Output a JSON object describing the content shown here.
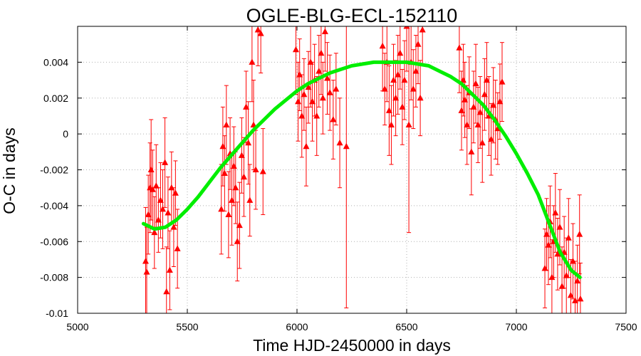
{
  "chart_data": {
    "type": "scatter",
    "title": "OGLE-BLG-ECL-152110",
    "xlabel": "Time HJD-2450000 in days",
    "ylabel": "O-C in days",
    "xlim": [
      5000,
      7500
    ],
    "ylim": [
      -0.01,
      0.006
    ],
    "xticks": [
      5000,
      5500,
      6000,
      6500,
      7000,
      7500
    ],
    "xtick_labels": [
      "5000",
      "5500",
      "6000",
      "6500",
      "7000",
      "7500"
    ],
    "yticks": [
      -0.01,
      -0.008,
      -0.006,
      -0.004,
      -0.002,
      0,
      0.002,
      0.004
    ],
    "ytick_labels": [
      "-0.01",
      "-0.008",
      "-0.006",
      "-0.004",
      "-0.002",
      "0",
      "0.002",
      "0.004"
    ],
    "grid": true,
    "series": [
      {
        "kind": "errorbar-points",
        "marker": "triangle",
        "color": "#ff0000",
        "points": [
          {
            "x": 5310,
            "y": -0.0071,
            "err": 0.003
          },
          {
            "x": 5315,
            "y": -0.0077,
            "err": 0.0025
          },
          {
            "x": 5322,
            "y": -0.0045,
            "err": 0.0022
          },
          {
            "x": 5330,
            "y": -0.003,
            "err": 0.0025
          },
          {
            "x": 5335,
            "y": -0.002,
            "err": 0.0028
          },
          {
            "x": 5342,
            "y": -0.0031,
            "err": 0.0022
          },
          {
            "x": 5350,
            "y": -0.0055,
            "err": 0.002
          },
          {
            "x": 5358,
            "y": -0.0029,
            "err": 0.0023
          },
          {
            "x": 5368,
            "y": -0.0048,
            "err": 0.0018
          },
          {
            "x": 5378,
            "y": -0.0037,
            "err": 0.0021
          },
          {
            "x": 5388,
            "y": -0.0042,
            "err": 0.0022
          },
          {
            "x": 5398,
            "y": -0.0016,
            "err": 0.0025
          },
          {
            "x": 5405,
            "y": -0.0088,
            "err": 0.0025
          },
          {
            "x": 5412,
            "y": -0.0044,
            "err": 0.002
          },
          {
            "x": 5420,
            "y": -0.0076,
            "err": 0.0022
          },
          {
            "x": 5428,
            "y": -0.003,
            "err": 0.002
          },
          {
            "x": 5438,
            "y": -0.0052,
            "err": 0.0022
          },
          {
            "x": 5446,
            "y": -0.0033,
            "err": 0.0018
          },
          {
            "x": 5455,
            "y": -0.0064,
            "err": 0.0022
          },
          {
            "x": 5655,
            "y": -0.0042,
            "err": 0.0025
          },
          {
            "x": 5662,
            "y": -0.0007,
            "err": 0.0022
          },
          {
            "x": 5670,
            "y": -0.0022,
            "err": 0.0021
          },
          {
            "x": 5678,
            "y": 0.0005,
            "err": 0.0022
          },
          {
            "x": 5688,
            "y": -0.0045,
            "err": 0.0024
          },
          {
            "x": 5695,
            "y": -0.0011,
            "err": 0.002
          },
          {
            "x": 5703,
            "y": -0.0037,
            "err": 0.0025
          },
          {
            "x": 5712,
            "y": -0.0018,
            "err": 0.0022
          },
          {
            "x": 5720,
            "y": -0.003,
            "err": 0.002
          },
          {
            "x": 5728,
            "y": -0.006,
            "err": 0.0022
          },
          {
            "x": 5738,
            "y": -0.0051,
            "err": 0.0024
          },
          {
            "x": 5748,
            "y": -0.0012,
            "err": 0.0021
          },
          {
            "x": 5758,
            "y": -0.0024,
            "err": 0.0022
          },
          {
            "x": 5768,
            "y": 0.0015,
            "err": 0.002
          },
          {
            "x": 5778,
            "y": -0.0005,
            "err": 0.0023
          },
          {
            "x": 5785,
            "y": -0.0037,
            "err": 0.002
          },
          {
            "x": 5795,
            "y": 0.004,
            "err": 0.0022
          },
          {
            "x": 5802,
            "y": 0.0005,
            "err": 0.0025
          },
          {
            "x": 5812,
            "y": -0.002,
            "err": 0.0022
          },
          {
            "x": 5822,
            "y": 0.0058,
            "err": 0.002
          },
          {
            "x": 5835,
            "y": 0.0056,
            "err": 0.0022
          },
          {
            "x": 5845,
            "y": -0.0021,
            "err": 0.0024
          },
          {
            "x": 5995,
            "y": 0.0047,
            "err": 0.0025
          },
          {
            "x": 6005,
            "y": 0.0018,
            "err": 0.0022
          },
          {
            "x": 6012,
            "y": 0.0033,
            "err": 0.002
          },
          {
            "x": 6022,
            "y": 0.001,
            "err": 0.0023
          },
          {
            "x": 6032,
            "y": 0.0022,
            "err": 0.002
          },
          {
            "x": 6042,
            "y": -0.0007,
            "err": 0.0022
          },
          {
            "x": 6052,
            "y": 0.0026,
            "err": 0.002
          },
          {
            "x": 6062,
            "y": 0.004,
            "err": 0.0025
          },
          {
            "x": 6070,
            "y": 0.0018,
            "err": 0.0022
          },
          {
            "x": 6080,
            "y": 0.003,
            "err": 0.002
          },
          {
            "x": 6090,
            "y": 0.001,
            "err": 0.0022
          },
          {
            "x": 6100,
            "y": 0.0035,
            "err": 0.002
          },
          {
            "x": 6110,
            "y": 0.0045,
            "err": 0.0023
          },
          {
            "x": 6118,
            "y": 0.002,
            "err": 0.002
          },
          {
            "x": 6128,
            "y": 0.0057,
            "err": 0.0022
          },
          {
            "x": 6138,
            "y": 0.0031,
            "err": 0.002
          },
          {
            "x": 6150,
            "y": 0.0023,
            "err": 0.0021
          },
          {
            "x": 6165,
            "y": 0.0008,
            "err": 0.0022
          },
          {
            "x": 6178,
            "y": 0.0025,
            "err": 0.002
          },
          {
            "x": 6195,
            "y": -0.0005,
            "err": 0.0025
          },
          {
            "x": 6225,
            "y": -0.0007,
            "err": 0.009
          },
          {
            "x": 6390,
            "y": 0.0049,
            "err": 0.0025
          },
          {
            "x": 6400,
            "y": 0.0025,
            "err": 0.002
          },
          {
            "x": 6410,
            "y": 0.004,
            "err": 0.0022
          },
          {
            "x": 6420,
            "y": 0.0013,
            "err": 0.0025
          },
          {
            "x": 6430,
            "y": 0.0005,
            "err": 0.0022
          },
          {
            "x": 6440,
            "y": 0.003,
            "err": 0.002
          },
          {
            "x": 6450,
            "y": 0.002,
            "err": 0.0021
          },
          {
            "x": 6460,
            "y": 0.0033,
            "err": 0.0022
          },
          {
            "x": 6470,
            "y": 0.0045,
            "err": 0.002
          },
          {
            "x": 6480,
            "y": 0.0015,
            "err": 0.0021
          },
          {
            "x": 6490,
            "y": 0.003,
            "err": 0.0022
          },
          {
            "x": 6500,
            "y": 0.006,
            "err": 0.0025
          },
          {
            "x": 6510,
            "y": 0.0005,
            "err": 0.006
          },
          {
            "x": 6520,
            "y": 0.004,
            "err": 0.0021
          },
          {
            "x": 6530,
            "y": 0.0025,
            "err": 0.0022
          },
          {
            "x": 6542,
            "y": 0.0035,
            "err": 0.002
          },
          {
            "x": 6552,
            "y": 0.005,
            "err": 0.0022
          },
          {
            "x": 6562,
            "y": 0.002,
            "err": 0.0021
          },
          {
            "x": 6572,
            "y": 0.0058,
            "err": 0.002
          },
          {
            "x": 6740,
            "y": 0.0048,
            "err": 0.0025
          },
          {
            "x": 6750,
            "y": 0.0013,
            "err": 0.0022
          },
          {
            "x": 6758,
            "y": 0.003,
            "err": 0.002
          },
          {
            "x": 6765,
            "y": 0.0019,
            "err": 0.0021
          },
          {
            "x": 6775,
            "y": 0.0005,
            "err": 0.0022
          },
          {
            "x": 6785,
            "y": 0.0023,
            "err": 0.002
          },
          {
            "x": 6795,
            "y": -0.001,
            "err": 0.0024
          },
          {
            "x": 6805,
            "y": 0.0015,
            "err": 0.002
          },
          {
            "x": 6815,
            "y": 0.0028,
            "err": 0.0022
          },
          {
            "x": 6825,
            "y": 0.0005,
            "err": 0.0021
          },
          {
            "x": 6835,
            "y": 0.0012,
            "err": 0.002
          },
          {
            "x": 6845,
            "y": -0.0005,
            "err": 0.0022
          },
          {
            "x": 6855,
            "y": 0.0022,
            "err": 0.002
          },
          {
            "x": 6865,
            "y": 0.003,
            "err": 0.0021
          },
          {
            "x": 6875,
            "y": 0.001,
            "err": 0.0022
          },
          {
            "x": 6885,
            "y": -0.0003,
            "err": 0.002
          },
          {
            "x": 6895,
            "y": 0.0016,
            "err": 0.0021
          },
          {
            "x": 6905,
            "y": 0.0008,
            "err": 0.0022
          },
          {
            "x": 6915,
            "y": 0.0003,
            "err": 0.002
          },
          {
            "x": 6925,
            "y": 0.0018,
            "err": 0.0021
          },
          {
            "x": 6935,
            "y": 0.0029,
            "err": 0.0022
          },
          {
            "x": 7130,
            "y": -0.0075,
            "err": 0.0022
          },
          {
            "x": 7138,
            "y": -0.0056,
            "err": 0.002
          },
          {
            "x": 7146,
            "y": -0.0062,
            "err": 0.0022
          },
          {
            "x": 7154,
            "y": -0.0049,
            "err": 0.002
          },
          {
            "x": 7162,
            "y": -0.008,
            "err": 0.0021
          },
          {
            "x": 7170,
            "y": -0.006,
            "err": 0.002
          },
          {
            "x": 7178,
            "y": -0.0044,
            "err": 0.0022
          },
          {
            "x": 7188,
            "y": -0.0067,
            "err": 0.002
          },
          {
            "x": 7198,
            "y": -0.0052,
            "err": 0.0021
          },
          {
            "x": 7208,
            "y": -0.0085,
            "err": 0.0022
          },
          {
            "x": 7218,
            "y": -0.0066,
            "err": 0.002
          },
          {
            "x": 7228,
            "y": -0.0079,
            "err": 0.0021
          },
          {
            "x": 7238,
            "y": -0.0058,
            "err": 0.0022
          },
          {
            "x": 7248,
            "y": -0.009,
            "err": 0.002
          },
          {
            "x": 7258,
            "y": -0.0071,
            "err": 0.0021
          },
          {
            "x": 7268,
            "y": -0.0093,
            "err": 0.0022
          },
          {
            "x": 7278,
            "y": -0.0082,
            "err": 0.002
          },
          {
            "x": 7288,
            "y": -0.0056,
            "err": 0.0022
          },
          {
            "x": 7292,
            "y": -0.0092,
            "err": 0.002
          }
        ]
      },
      {
        "kind": "fit-curve",
        "color": "#00ee00",
        "x": [
          5300,
          5350,
          5400,
          5450,
          5500,
          5550,
          5600,
          5650,
          5700,
          5750,
          5800,
          5850,
          5900,
          5950,
          6000,
          6050,
          6100,
          6150,
          6200,
          6250,
          6300,
          6350,
          6400,
          6450,
          6500,
          6550,
          6600,
          6650,
          6700,
          6750,
          6800,
          6850,
          6900,
          6950,
          7000,
          7050,
          7100,
          7150,
          7200,
          7250,
          7290
        ],
        "y": [
          -0.005,
          -0.0053,
          -0.0052,
          -0.0048,
          -0.0042,
          -0.0035,
          -0.0027,
          -0.0019,
          -0.0012,
          -0.0005,
          0.0002,
          0.0008,
          0.0014,
          0.0019,
          0.0024,
          0.0028,
          0.0031,
          0.0034,
          0.0036,
          0.0038,
          0.0039,
          0.004,
          0.004,
          0.004,
          0.004,
          0.0039,
          0.0038,
          0.0035,
          0.0032,
          0.0028,
          0.0022,
          0.0016,
          0.0008,
          -0.0001,
          -0.0011,
          -0.0022,
          -0.0034,
          -0.005,
          -0.0066,
          -0.0076,
          -0.008
        ]
      }
    ]
  }
}
